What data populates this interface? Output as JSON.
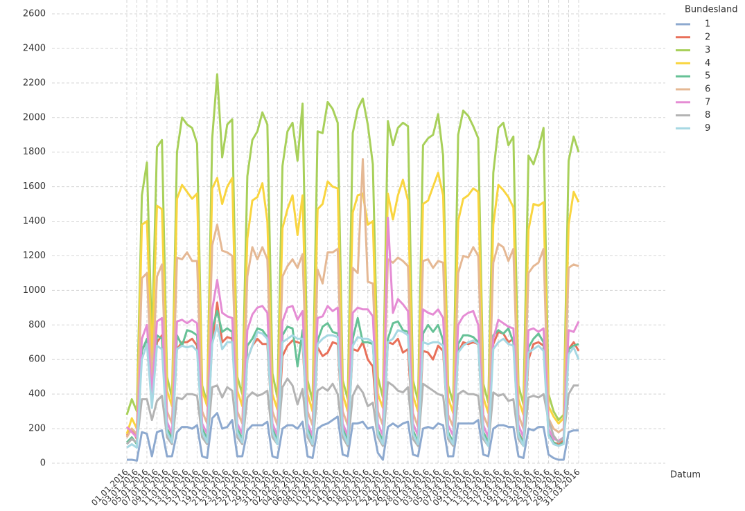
{
  "chart_data": {
    "type": "line",
    "x_label": "Datum",
    "legend_title": "Bundesland",
    "legend": "right",
    "grid": true,
    "ylim": [
      0,
      2600
    ],
    "yticks": [
      0,
      200,
      400,
      600,
      800,
      1000,
      1200,
      1400,
      1600,
      1800,
      2000,
      2200,
      2400,
      2600
    ],
    "categories": [
      "01.01.2016",
      null,
      "03.01.2016",
      null,
      "05.01.2016",
      null,
      "07.01.2016",
      null,
      "09.01.2016",
      null,
      "11.01.2016",
      null,
      "13.01.2016",
      null,
      "15.01.2016",
      null,
      "17.01.2016",
      null,
      "19.01.2016",
      null,
      "21.01.2016",
      null,
      "23.01.2016",
      null,
      "25.01.2016",
      null,
      "27.01.2016",
      null,
      "29.01.2016",
      null,
      "31.01.2016",
      null,
      "02.02.2016",
      null,
      "04.02.2016",
      null,
      "06.02.2016",
      null,
      "08.02.2016",
      null,
      "10.02.2016",
      null,
      "12.02.2016",
      null,
      "14.02.2016",
      null,
      "16.02.2016",
      null,
      "18.02.2016",
      null,
      "20.02.2016",
      null,
      "22.02.2016",
      null,
      "24.02.2016",
      null,
      "26.02.2016",
      null,
      "28.02.2016",
      null,
      "01.03.2016",
      null,
      "03.03.2016",
      null,
      "05.03.2016",
      null,
      "07.03.2016",
      null,
      "09.03.2016",
      null,
      "11.03.2016",
      null,
      "13.03.2016",
      null,
      "15.03.2016",
      null,
      "17.03.2016",
      null,
      "19.03.2016",
      null,
      "21.03.2016",
      null,
      "23.03.2016",
      null,
      "25.03.2016",
      null,
      "27.03.2016",
      null,
      "29.03.2016",
      null,
      "31.03.2016"
    ],
    "series": [
      {
        "name": "1",
        "color": "#8da9cf",
        "values": [
          20,
          20,
          15,
          180,
          170,
          40,
          180,
          190,
          40,
          40,
          180,
          210,
          210,
          200,
          220,
          40,
          30,
          260,
          290,
          200,
          210,
          250,
          40,
          40,
          190,
          220,
          220,
          220,
          240,
          40,
          30,
          200,
          220,
          220,
          200,
          240,
          40,
          30,
          200,
          220,
          230,
          250,
          270,
          50,
          40,
          230,
          230,
          240,
          200,
          210,
          60,
          20,
          210,
          230,
          210,
          230,
          240,
          50,
          40,
          200,
          210,
          200,
          230,
          220,
          40,
          40,
          230,
          230,
          230,
          230,
          250,
          50,
          40,
          200,
          220,
          220,
          210,
          210,
          40,
          30,
          200,
          190,
          210,
          210,
          50,
          30,
          20,
          20,
          180,
          190,
          190
        ]
      },
      {
        "name": "2",
        "color": "#e8705a",
        "values": [
          160,
          200,
          140,
          660,
          700,
          400,
          700,
          740,
          200,
          150,
          660,
          700,
          700,
          720,
          680,
          200,
          140,
          700,
          930,
          700,
          730,
          720,
          200,
          140,
          600,
          680,
          720,
          690,
          690,
          200,
          130,
          620,
          680,
          710,
          700,
          690,
          200,
          130,
          670,
          620,
          640,
          700,
          690,
          190,
          130,
          660,
          650,
          700,
          600,
          560,
          190,
          130,
          700,
          690,
          720,
          640,
          660,
          190,
          120,
          650,
          640,
          600,
          680,
          650,
          180,
          120,
          640,
          700,
          690,
          700,
          690,
          180,
          120,
          690,
          760,
          750,
          700,
          720,
          180,
          120,
          600,
          690,
          700,
          680,
          170,
          120,
          110,
          130,
          660,
          700,
          650
        ]
      },
      {
        "name": "3",
        "color": "#a8d05a",
        "values": [
          280,
          370,
          300,
          1550,
          1740,
          700,
          1830,
          1870,
          500,
          380,
          1800,
          2000,
          1960,
          1940,
          1850,
          450,
          350,
          1880,
          2250,
          1770,
          1960,
          1990,
          500,
          400,
          1660,
          1870,
          1920,
          2030,
          1960,
          520,
          380,
          1720,
          1920,
          1970,
          1750,
          2080,
          480,
          360,
          1920,
          1910,
          2090,
          2050,
          1970,
          480,
          370,
          1910,
          2050,
          2110,
          1960,
          1730,
          500,
          380,
          1980,
          1840,
          1940,
          1970,
          1950,
          480,
          360,
          1840,
          1880,
          1900,
          2020,
          1780,
          450,
          350,
          1900,
          2040,
          2010,
          1950,
          1880,
          460,
          350,
          1680,
          1940,
          1970,
          1840,
          1890,
          450,
          340,
          1780,
          1730,
          1820,
          1940,
          400,
          300,
          250,
          280,
          1750,
          1890,
          1800
        ]
      },
      {
        "name": "4",
        "color": "#f9d53f",
        "values": [
          170,
          260,
          200,
          1380,
          1400,
          600,
          1490,
          1470,
          420,
          330,
          1530,
          1610,
          1570,
          1530,
          1560,
          420,
          330,
          1590,
          1650,
          1500,
          1600,
          1650,
          420,
          330,
          1300,
          1520,
          1540,
          1620,
          1400,
          400,
          310,
          1360,
          1470,
          1550,
          1320,
          1550,
          400,
          300,
          1470,
          1500,
          1630,
          1600,
          1590,
          400,
          300,
          1450,
          1550,
          1560,
          1380,
          1400,
          400,
          320,
          1560,
          1410,
          1550,
          1640,
          1520,
          390,
          300,
          1500,
          1520,
          1600,
          1680,
          1550,
          380,
          290,
          1400,
          1530,
          1550,
          1590,
          1570,
          380,
          290,
          1380,
          1610,
          1580,
          1540,
          1480,
          370,
          280,
          1350,
          1500,
          1490,
          1510,
          330,
          270,
          230,
          260,
          1380,
          1570,
          1510
        ]
      },
      {
        "name": "5",
        "color": "#66c196",
        "values": [
          120,
          150,
          110,
          650,
          720,
          350,
          740,
          720,
          200,
          140,
          740,
          680,
          770,
          760,
          740,
          200,
          140,
          780,
          880,
          760,
          780,
          760,
          200,
          140,
          680,
          720,
          780,
          770,
          730,
          200,
          130,
          740,
          790,
          780,
          560,
          770,
          200,
          130,
          710,
          790,
          810,
          760,
          750,
          200,
          130,
          720,
          840,
          700,
          700,
          690,
          190,
          130,
          720,
          810,
          820,
          770,
          760,
          190,
          120,
          750,
          800,
          760,
          800,
          710,
          180,
          120,
          690,
          740,
          740,
          730,
          700,
          180,
          120,
          740,
          770,
          750,
          780,
          700,
          180,
          110,
          670,
          720,
          750,
          700,
          170,
          120,
          100,
          120,
          660,
          680,
          690
        ]
      },
      {
        "name": "6",
        "color": "#e5b894",
        "values": [
          150,
          200,
          170,
          1070,
          1100,
          450,
          1080,
          1150,
          300,
          230,
          1190,
          1180,
          1220,
          1170,
          1170,
          300,
          230,
          1260,
          1380,
          1230,
          1220,
          1200,
          300,
          230,
          1080,
          1250,
          1180,
          1250,
          1180,
          300,
          220,
          1080,
          1140,
          1180,
          1130,
          1210,
          300,
          220,
          1120,
          1040,
          1220,
          1220,
          1240,
          300,
          220,
          1130,
          1100,
          1760,
          1050,
          1040,
          300,
          220,
          1180,
          1160,
          1190,
          1170,
          1140,
          290,
          210,
          1170,
          1180,
          1130,
          1170,
          1160,
          280,
          210,
          1100,
          1200,
          1190,
          1250,
          1200,
          280,
          210,
          1160,
          1270,
          1250,
          1170,
          1240,
          280,
          200,
          1100,
          1140,
          1160,
          1240,
          260,
          200,
          180,
          200,
          1130,
          1150,
          1140
        ]
      },
      {
        "name": "7",
        "color": "#e58cd4",
        "values": [
          210,
          180,
          150,
          720,
          800,
          400,
          820,
          840,
          240,
          170,
          820,
          830,
          810,
          830,
          810,
          230,
          170,
          890,
          1060,
          870,
          850,
          840,
          230,
          170,
          770,
          860,
          900,
          910,
          870,
          230,
          160,
          820,
          900,
          910,
          830,
          880,
          230,
          160,
          840,
          850,
          910,
          880,
          900,
          230,
          160,
          870,
          900,
          890,
          890,
          850,
          230,
          160,
          1420,
          870,
          950,
          920,
          880,
          230,
          160,
          890,
          870,
          860,
          890,
          840,
          220,
          160,
          800,
          850,
          870,
          880,
          800,
          220,
          150,
          720,
          830,
          810,
          790,
          780,
          220,
          150,
          770,
          780,
          760,
          780,
          200,
          140,
          130,
          150,
          770,
          760,
          820
        ]
      },
      {
        "name": "8",
        "color": "#b3b3b3",
        "values": [
          110,
          140,
          120,
          370,
          370,
          250,
          360,
          390,
          150,
          110,
          380,
          370,
          400,
          400,
          390,
          150,
          110,
          440,
          450,
          380,
          440,
          420,
          150,
          110,
          380,
          410,
          390,
          400,
          420,
          150,
          110,
          440,
          490,
          450,
          340,
          430,
          150,
          100,
          420,
          440,
          420,
          460,
          400,
          150,
          100,
          390,
          450,
          410,
          330,
          350,
          150,
          100,
          470,
          450,
          420,
          410,
          440,
          140,
          100,
          460,
          440,
          420,
          400,
          390,
          140,
          100,
          400,
          420,
          400,
          400,
          390,
          140,
          100,
          410,
          390,
          400,
          360,
          370,
          140,
          100,
          380,
          390,
          380,
          400,
          250,
          160,
          120,
          150,
          400,
          450,
          450
        ]
      },
      {
        "name": "9",
        "color": "#a6d8e3",
        "values": [
          90,
          110,
          90,
          600,
          690,
          320,
          680,
          660,
          180,
          120,
          660,
          680,
          670,
          680,
          650,
          180,
          120,
          690,
          800,
          660,
          700,
          700,
          180,
          120,
          600,
          680,
          760,
          750,
          720,
          180,
          110,
          700,
          720,
          740,
          720,
          720,
          180,
          110,
          690,
          720,
          740,
          740,
          730,
          180,
          110,
          680,
          730,
          720,
          720,
          700,
          170,
          110,
          700,
          720,
          770,
          760,
          740,
          170,
          110,
          700,
          690,
          700,
          700,
          680,
          160,
          110,
          640,
          680,
          700,
          710,
          690,
          160,
          100,
          660,
          700,
          720,
          690,
          680,
          160,
          100,
          640,
          660,
          680,
          650,
          160,
          110,
          100,
          110,
          630,
          670,
          600
        ]
      }
    ]
  }
}
